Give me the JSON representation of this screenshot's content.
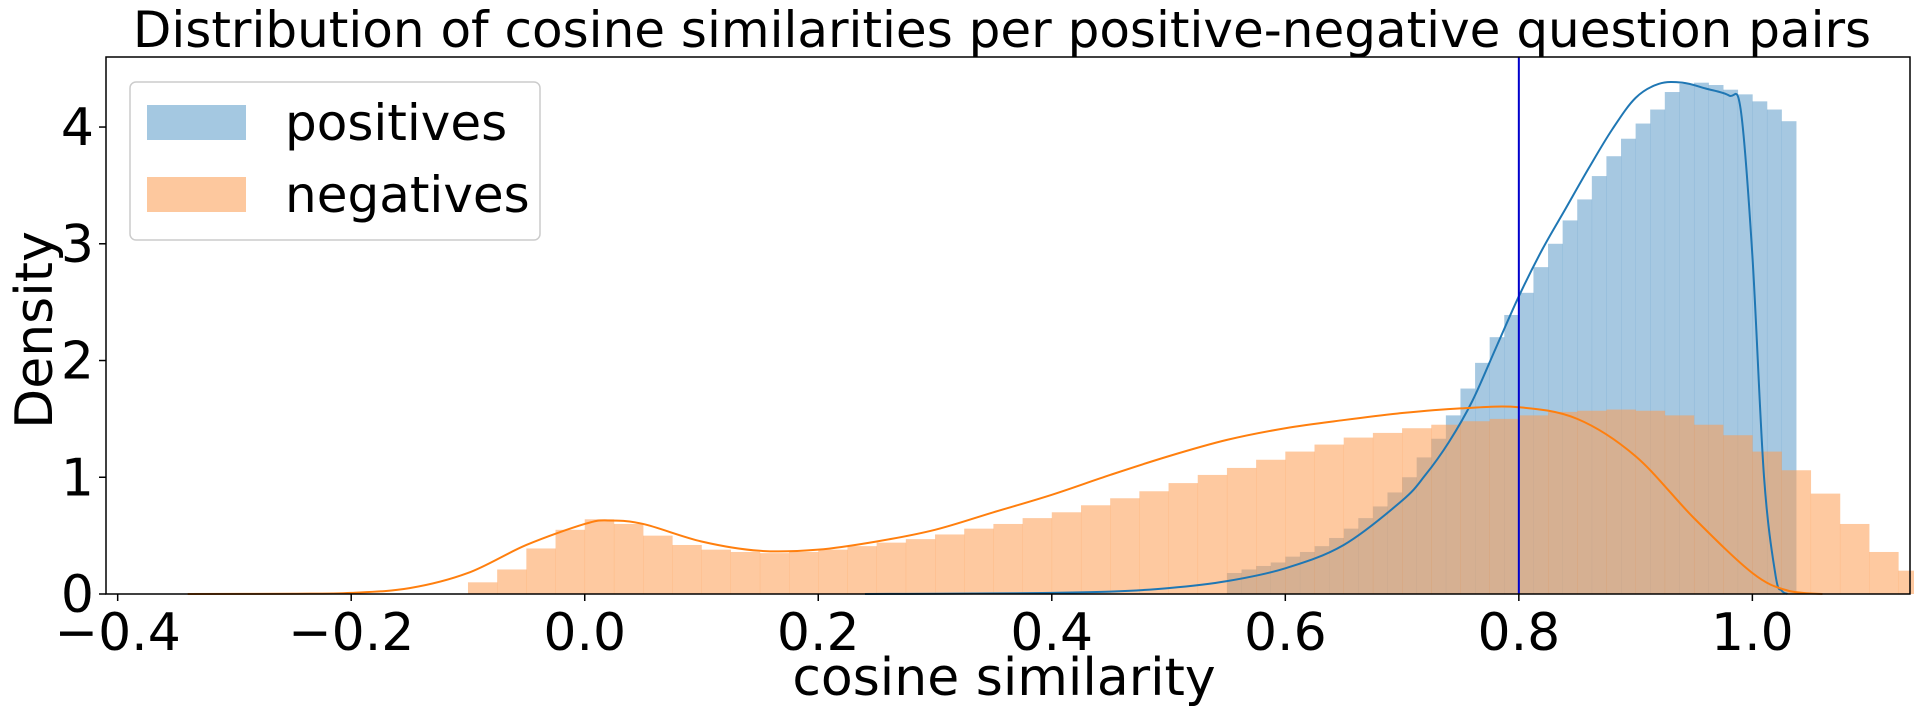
{
  "chart_data": {
    "type": "histogram",
    "title": "Distribution of cosine similarities per positive-negative question pairs",
    "xlabel": "cosine similarity",
    "ylabel": "Density",
    "xlim": [
      -0.41,
      1.135
    ],
    "ylim": [
      0,
      4.6
    ],
    "xticks": [
      -0.4,
      -0.2,
      0.0,
      0.2,
      0.4,
      0.6,
      0.8,
      1.0
    ],
    "xtick_labels": [
      "−0.4",
      "−0.2",
      "0.0",
      "0.2",
      "0.4",
      "0.6",
      "0.8",
      "1.0"
    ],
    "yticks": [
      0,
      1,
      2,
      3,
      4
    ],
    "ytick_labels": [
      "0",
      "1",
      "2",
      "3",
      "4"
    ],
    "grid": false,
    "legend": {
      "location": "upper-left",
      "entries": [
        {
          "label": "positives",
          "color": "#a4c8e1"
        },
        {
          "label": "negatives",
          "color": "#fdc89e"
        }
      ]
    },
    "vline": {
      "x": 0.8,
      "color": "#0000cc"
    },
    "series": [
      {
        "name": "positives",
        "fill_color": "#a4c8e1",
        "line_color": "#1f77b4",
        "bins_start": 0.55,
        "bin_width": 0.0125,
        "hist": [
          0.18,
          0.21,
          0.24,
          0.27,
          0.32,
          0.36,
          0.41,
          0.48,
          0.56,
          0.65,
          0.75,
          0.87,
          1.0,
          1.17,
          1.33,
          1.53,
          1.76,
          1.98,
          2.2,
          2.39,
          2.58,
          2.8,
          3.0,
          3.2,
          3.38,
          3.58,
          3.75,
          3.9,
          4.03,
          4.15,
          4.3,
          4.37,
          4.38,
          4.36,
          4.32,
          4.28,
          4.22,
          4.15,
          4.05
        ],
        "kde_x": [
          0.24,
          0.3,
          0.35,
          0.4,
          0.45,
          0.5,
          0.55,
          0.6,
          0.65,
          0.7,
          0.72,
          0.74,
          0.76,
          0.78,
          0.8,
          0.82,
          0.84,
          0.86,
          0.88,
          0.9,
          0.92,
          0.94,
          0.96,
          0.98,
          0.99,
          1.0,
          1.01,
          1.02,
          1.025,
          1.03
        ],
        "kde_y": [
          0.0,
          0.002,
          0.005,
          0.01,
          0.02,
          0.05,
          0.11,
          0.22,
          0.42,
          0.8,
          1.02,
          1.3,
          1.65,
          2.1,
          2.55,
          2.95,
          3.3,
          3.65,
          3.98,
          4.25,
          4.37,
          4.38,
          4.33,
          4.27,
          4.15,
          2.9,
          1.0,
          0.15,
          0.03,
          0.0
        ]
      },
      {
        "name": "negatives",
        "fill_color": "#fdc89e",
        "line_color": "#ff7f0e",
        "bins_start": -0.1,
        "bin_width": 0.025,
        "hist": [
          0.1,
          0.21,
          0.39,
          0.55,
          0.64,
          0.6,
          0.5,
          0.42,
          0.38,
          0.36,
          0.35,
          0.36,
          0.38,
          0.41,
          0.44,
          0.47,
          0.51,
          0.56,
          0.6,
          0.65,
          0.7,
          0.76,
          0.82,
          0.88,
          0.95,
          1.02,
          1.08,
          1.15,
          1.22,
          1.28,
          1.34,
          1.38,
          1.42,
          1.45,
          1.48,
          1.5,
          1.53,
          1.56,
          1.57,
          1.58,
          1.57,
          1.53,
          1.45,
          1.36,
          1.22,
          1.06,
          0.86,
          0.6,
          0.36,
          0.2
        ],
        "kde_x": [
          -0.34,
          -0.25,
          -0.2,
          -0.15,
          -0.1,
          -0.05,
          0.0,
          0.02,
          0.05,
          0.1,
          0.15,
          0.2,
          0.25,
          0.3,
          0.35,
          0.4,
          0.45,
          0.5,
          0.55,
          0.6,
          0.65,
          0.7,
          0.75,
          0.8,
          0.85,
          0.9,
          0.95,
          1.0,
          1.03,
          1.06
        ],
        "kde_y": [
          0.0,
          0.002,
          0.01,
          0.05,
          0.18,
          0.42,
          0.6,
          0.63,
          0.6,
          0.45,
          0.37,
          0.38,
          0.45,
          0.55,
          0.7,
          0.85,
          1.02,
          1.18,
          1.32,
          1.42,
          1.49,
          1.55,
          1.59,
          1.6,
          1.5,
          1.18,
          0.65,
          0.18,
          0.03,
          0.0
        ]
      }
    ]
  }
}
